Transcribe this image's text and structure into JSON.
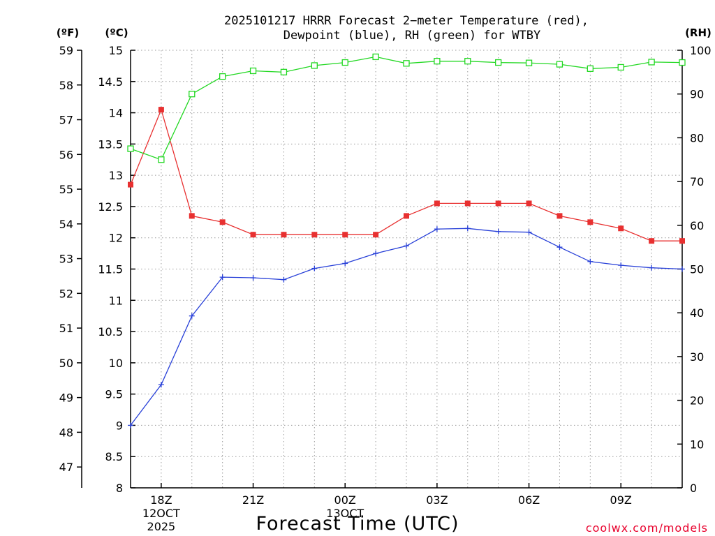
{
  "chart_data": {
    "type": "line",
    "title": "2025101217 HRRR Forecast 2-meter Temperature (red), Dewpoint (blue), RH (green) for WTBY",
    "title_lines": [
      "2025101217 HRRR Forecast 2−meter Temperature (red),",
      "Dewpoint (blue), RH (green) for WTBY"
    ],
    "xlabel": "Forecast Time (UTC)",
    "credit": "coolwx.com/models",
    "unit_labels": {
      "fahrenheit": "(ºF)",
      "celsius": "(ºC)",
      "rh": "(RH)"
    },
    "x": [
      "17Z",
      "18Z",
      "19Z",
      "20Z",
      "21Z",
      "22Z",
      "23Z",
      "00Z",
      "01Z",
      "02Z",
      "03Z",
      "04Z",
      "05Z",
      "06Z",
      "07Z",
      "08Z",
      "09Z",
      "10Z",
      "11Z"
    ],
    "x_ticks": [
      {
        "label": "18Z",
        "sub1": "12OCT",
        "sub2": "2025"
      },
      {
        "label": "21Z",
        "sub1": "",
        "sub2": ""
      },
      {
        "label": "00Z",
        "sub1": "13OCT",
        "sub2": ""
      },
      {
        "label": "03Z",
        "sub1": "",
        "sub2": ""
      },
      {
        "label": "06Z",
        "sub1": "",
        "sub2": ""
      },
      {
        "label": "09Z",
        "sub1": "",
        "sub2": ""
      }
    ],
    "y_celsius": {
      "ylim": [
        8,
        15
      ],
      "ticks": [
        "8",
        "8.5",
        "9",
        "9.5",
        "10",
        "10.5",
        "11",
        "11.5",
        "12",
        "12.5",
        "13",
        "13.5",
        "14",
        "14.5",
        "15"
      ]
    },
    "y_fahrenheit": {
      "ylim": [
        46.4,
        59
      ],
      "ticks": [
        "47",
        "48",
        "49",
        "50",
        "51",
        "52",
        "53",
        "54",
        "55",
        "56",
        "57",
        "58",
        "59"
      ]
    },
    "y_rh": {
      "ylim": [
        0,
        100
      ],
      "ticks": [
        "0",
        "10",
        "20",
        "30",
        "40",
        "50",
        "60",
        "70",
        "80",
        "90",
        "100"
      ]
    },
    "grid": true,
    "series": [
      {
        "name": "Temperature",
        "axis": "celsius",
        "color": "#e83030",
        "marker": "filled-square",
        "values": [
          12.85,
          14.05,
          12.35,
          12.25,
          12.05,
          12.05,
          12.05,
          12.05,
          12.05,
          12.35,
          12.55,
          12.55,
          12.55,
          12.55,
          12.35,
          12.25,
          12.15,
          11.95,
          11.95
        ]
      },
      {
        "name": "Dewpoint",
        "axis": "celsius",
        "color": "#2840d8",
        "marker": "plus",
        "values": [
          9.0,
          9.65,
          10.75,
          11.37,
          11.36,
          11.33,
          11.51,
          11.59,
          11.75,
          11.87,
          12.14,
          12.15,
          12.1,
          12.09,
          11.85,
          11.62,
          11.56,
          11.52,
          11.5
        ]
      },
      {
        "name": "RH",
        "axis": "rh",
        "color": "#22d822",
        "marker": "open-square",
        "values": [
          77.5,
          75.0,
          90.0,
          94.0,
          95.3,
          95.0,
          96.5,
          97.2,
          98.5,
          97.0,
          97.5,
          97.5,
          97.2,
          97.1,
          96.8,
          95.8,
          96.1,
          97.3,
          97.2
        ]
      }
    ]
  }
}
